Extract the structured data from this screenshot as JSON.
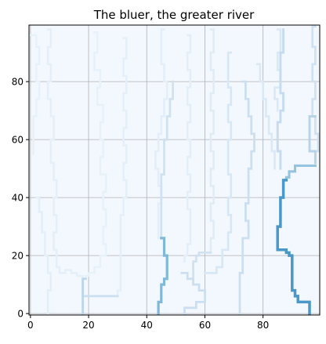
{
  "chart_data": {
    "type": "heatmap",
    "title": "The bluer, the greater river",
    "xlabel": "",
    "ylabel": "",
    "xlim": [
      -0.5,
      99.5
    ],
    "ylim": [
      -0.5,
      99.5
    ],
    "x_ticks": [
      0,
      20,
      40,
      60,
      80
    ],
    "y_ticks": [
      0,
      20,
      40,
      60,
      80
    ],
    "grid": true,
    "colormap": "Blues",
    "background_value": 0.02,
    "rivers": [
      {
        "flow": 0.08,
        "path": [
          [
            0,
            96
          ],
          [
            2,
            92
          ],
          [
            3,
            86
          ],
          [
            2,
            80
          ],
          [
            3,
            74
          ],
          [
            2,
            68
          ],
          [
            1,
            62
          ],
          [
            1,
            55
          ]
        ]
      },
      {
        "flow": 0.1,
        "path": [
          [
            2,
            40
          ],
          [
            3,
            35
          ],
          [
            4,
            28
          ],
          [
            5,
            20
          ],
          [
            6,
            14
          ],
          [
            7,
            8
          ],
          [
            6,
            2
          ],
          [
            6,
            0
          ]
        ]
      },
      {
        "flow": 0.09,
        "path": [
          [
            6,
            98
          ],
          [
            7,
            92
          ],
          [
            6,
            86
          ],
          [
            7,
            80
          ],
          [
            6,
            74
          ],
          [
            7,
            68
          ],
          [
            8,
            60
          ],
          [
            7,
            52
          ],
          [
            8,
            46
          ],
          [
            9,
            40
          ],
          [
            8,
            34
          ],
          [
            9,
            28
          ],
          [
            8,
            22
          ],
          [
            9,
            16
          ],
          [
            10,
            14
          ],
          [
            12,
            15
          ],
          [
            14,
            14
          ],
          [
            16,
            13
          ],
          [
            18,
            12
          ]
        ]
      },
      {
        "flow": 0.08,
        "path": [
          [
            22,
            97
          ],
          [
            23,
            90
          ],
          [
            22,
            84
          ],
          [
            24,
            78
          ],
          [
            23,
            72
          ],
          [
            25,
            66
          ],
          [
            24,
            60
          ],
          [
            25,
            54
          ],
          [
            24,
            48
          ],
          [
            26,
            42
          ],
          [
            25,
            36
          ],
          [
            26,
            30
          ],
          [
            25,
            24
          ],
          [
            26,
            20
          ],
          [
            24,
            16
          ],
          [
            22,
            14
          ],
          [
            20,
            13
          ],
          [
            19,
            12
          ]
        ]
      },
      {
        "flow": 0.09,
        "path": [
          [
            32,
            95
          ],
          [
            33,
            88
          ],
          [
            32,
            82
          ],
          [
            33,
            76
          ],
          [
            32,
            70
          ],
          [
            33,
            64
          ],
          [
            32,
            58
          ],
          [
            33,
            52
          ],
          [
            32,
            46
          ],
          [
            33,
            40
          ],
          [
            32,
            34
          ],
          [
            31,
            28
          ],
          [
            31,
            20
          ],
          [
            31,
            14
          ],
          [
            31,
            8
          ],
          [
            30,
            6
          ]
        ]
      },
      {
        "flow": 0.28,
        "path": [
          [
            19,
            12
          ],
          [
            18,
            12
          ],
          [
            18,
            6
          ],
          [
            18,
            0
          ]
        ]
      },
      {
        "flow": 0.22,
        "path": [
          [
            18,
            6
          ],
          [
            21,
            6
          ],
          [
            24,
            6
          ],
          [
            27,
            6
          ],
          [
            30,
            6
          ]
        ]
      },
      {
        "flow": 0.1,
        "path": [
          [
            46,
            98
          ],
          [
            45,
            92
          ],
          [
            45,
            86
          ],
          [
            46,
            80
          ],
          [
            47,
            74
          ],
          [
            46,
            68
          ],
          [
            45,
            62
          ],
          [
            44,
            56
          ],
          [
            43,
            50
          ],
          [
            44,
            44
          ],
          [
            45,
            38
          ],
          [
            44,
            32
          ],
          [
            44,
            26
          ]
        ]
      },
      {
        "flow": 0.2,
        "path": [
          [
            49,
            80
          ],
          [
            49,
            74
          ],
          [
            48,
            68
          ],
          [
            47,
            60
          ],
          [
            46,
            54
          ],
          [
            46,
            48
          ],
          [
            45,
            42
          ],
          [
            45,
            36
          ],
          [
            45,
            30
          ],
          [
            45,
            26
          ]
        ]
      },
      {
        "flow": 0.45,
        "path": [
          [
            45,
            26
          ],
          [
            46,
            24
          ],
          [
            46,
            20
          ],
          [
            47,
            18
          ],
          [
            47,
            12
          ],
          [
            46,
            10
          ],
          [
            45,
            8
          ],
          [
            45,
            4
          ],
          [
            44,
            2
          ],
          [
            44,
            0
          ]
        ]
      },
      {
        "flow": 0.1,
        "path": [
          [
            54,
            96
          ],
          [
            55,
            90
          ],
          [
            54,
            84
          ],
          [
            55,
            78
          ],
          [
            54,
            72
          ],
          [
            55,
            66
          ],
          [
            54,
            60
          ],
          [
            55,
            54
          ],
          [
            54,
            48
          ],
          [
            55,
            42
          ],
          [
            54,
            36
          ],
          [
            55,
            30
          ],
          [
            55,
            24
          ],
          [
            54,
            20
          ],
          [
            53,
            18
          ]
        ]
      },
      {
        "flow": 0.12,
        "path": [
          [
            62,
            98
          ],
          [
            63,
            90
          ],
          [
            62,
            84
          ],
          [
            63,
            76
          ],
          [
            62,
            70
          ],
          [
            63,
            62
          ],
          [
            62,
            56
          ],
          [
            63,
            50
          ],
          [
            62,
            44
          ],
          [
            63,
            38
          ],
          [
            62,
            32
          ],
          [
            63,
            26
          ],
          [
            62,
            21
          ]
        ]
      },
      {
        "flow": 0.16,
        "path": [
          [
            69,
            90
          ],
          [
            68,
            84
          ],
          [
            68,
            78
          ],
          [
            69,
            72
          ],
          [
            68,
            66
          ],
          [
            69,
            60
          ],
          [
            68,
            54
          ],
          [
            68,
            48
          ],
          [
            69,
            40
          ],
          [
            68,
            34
          ],
          [
            69,
            28
          ],
          [
            68,
            22
          ],
          [
            66,
            16
          ],
          [
            64,
            14
          ],
          [
            62,
            14
          ],
          [
            60,
            14
          ]
        ]
      },
      {
        "flow": 0.22,
        "path": [
          [
            52,
            14
          ],
          [
            54,
            12
          ],
          [
            56,
            10
          ],
          [
            58,
            8
          ],
          [
            60,
            6
          ],
          [
            60,
            4
          ],
          [
            57,
            2
          ],
          [
            54,
            2
          ],
          [
            53,
            0
          ]
        ]
      },
      {
        "flow": 0.2,
        "path": [
          [
            62,
            21
          ],
          [
            60,
            21
          ],
          [
            58,
            20
          ],
          [
            57,
            18
          ],
          [
            56,
            14
          ],
          [
            56,
            10
          ]
        ]
      },
      {
        "flow": 0.22,
        "path": [
          [
            73,
            80
          ],
          [
            74,
            74
          ],
          [
            75,
            68
          ],
          [
            76,
            62
          ],
          [
            77,
            56
          ],
          [
            76,
            50
          ],
          [
            75,
            44
          ],
          [
            75,
            38
          ],
          [
            74,
            32
          ],
          [
            75,
            26
          ],
          [
            73,
            20
          ],
          [
            73,
            14
          ],
          [
            72,
            8
          ],
          [
            72,
            0
          ]
        ]
      },
      {
        "flow": 0.14,
        "path": [
          [
            78,
            86
          ],
          [
            79,
            80
          ],
          [
            80,
            74
          ],
          [
            81,
            68
          ],
          [
            82,
            62
          ],
          [
            83,
            56
          ],
          [
            84,
            50
          ]
        ]
      },
      {
        "flow": 0.14,
        "path": [
          [
            85,
            98
          ],
          [
            86,
            90
          ],
          [
            85,
            84
          ],
          [
            86,
            78
          ],
          [
            84,
            74
          ],
          [
            85,
            70
          ]
        ]
      },
      {
        "flow": 0.25,
        "path": [
          [
            87,
            98
          ],
          [
            87,
            90
          ],
          [
            86,
            84
          ],
          [
            86,
            76
          ],
          [
            87,
            70
          ],
          [
            86,
            66
          ],
          [
            85,
            62
          ],
          [
            85,
            56
          ],
          [
            86,
            50
          ]
        ]
      },
      {
        "flow": 0.2,
        "path": [
          [
            98,
            99
          ],
          [
            97,
            92
          ],
          [
            98,
            86
          ],
          [
            97,
            80
          ],
          [
            98,
            74
          ],
          [
            97,
            68
          ],
          [
            98,
            62
          ],
          [
            99,
            56
          ],
          [
            98,
            52
          ]
        ]
      },
      {
        "flow": 0.3,
        "path": [
          [
            98,
            68
          ],
          [
            96,
            64
          ],
          [
            96,
            56
          ],
          [
            98,
            52
          ]
        ]
      },
      {
        "flow": 0.4,
        "path": [
          [
            98,
            51
          ],
          [
            95,
            51
          ],
          [
            92,
            51
          ],
          [
            91,
            49
          ],
          [
            89,
            47
          ],
          [
            88,
            46
          ]
        ]
      },
      {
        "flow": 0.6,
        "path": [
          [
            88,
            46
          ],
          [
            87,
            44
          ],
          [
            87,
            40
          ],
          [
            86,
            38
          ],
          [
            86,
            34
          ],
          [
            86,
            30
          ],
          [
            85,
            28
          ],
          [
            85,
            22
          ],
          [
            88,
            21
          ],
          [
            89,
            20
          ],
          [
            90,
            18
          ],
          [
            90,
            12
          ],
          [
            90,
            8
          ],
          [
            91,
            6
          ],
          [
            92,
            4
          ],
          [
            95,
            4
          ],
          [
            96,
            2
          ],
          [
            96,
            0
          ]
        ]
      }
    ]
  }
}
